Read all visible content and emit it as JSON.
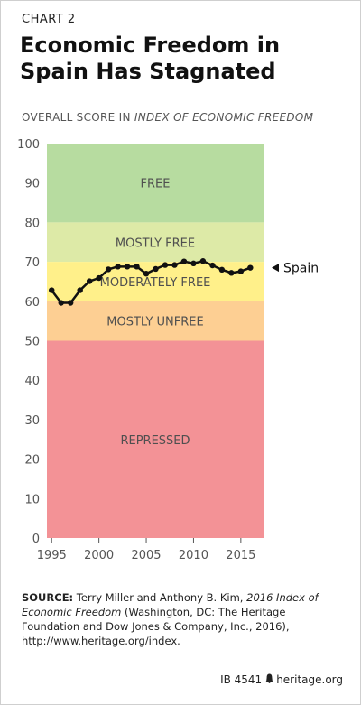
{
  "header": {
    "chart_number": "CHART 2",
    "title": "Economic Freedom in Spain Has Stagnated",
    "subtitle_prefix": "OVERALL SCORE IN ",
    "subtitle_italic": "INDEX OF ECONOMIC FREEDOM"
  },
  "colors": {
    "free": "#b7dca0",
    "mostly_free": "#ddeaa7",
    "moderately_free": "#fff08a",
    "mostly_unfree": "#fdcf93",
    "repressed": "#f39296",
    "band_text": "#4f4f4f",
    "line": "#111111"
  },
  "chart_data": {
    "type": "line",
    "x": [
      1995,
      1996,
      1997,
      1998,
      1999,
      2000,
      2001,
      2002,
      2003,
      2004,
      2005,
      2006,
      2007,
      2008,
      2009,
      2010,
      2011,
      2012,
      2013,
      2014,
      2015,
      2016
    ],
    "series": [
      {
        "name": "Spain",
        "values": [
          62.8,
          59.6,
          59.6,
          62.8,
          65.1,
          65.9,
          68.1,
          68.8,
          68.8,
          68.8,
          67.0,
          68.2,
          69.2,
          69.2,
          70.1,
          69.6,
          70.2,
          69.1,
          68.0,
          67.2,
          67.6,
          68.5
        ]
      }
    ],
    "bands": [
      {
        "label": "FREE",
        "min": 80,
        "max": 100,
        "color_key": "free"
      },
      {
        "label": "MOSTLY FREE",
        "min": 70,
        "max": 80,
        "color_key": "mostly_free"
      },
      {
        "label": "MODERATELY FREE",
        "min": 60,
        "max": 70,
        "color_key": "moderately_free"
      },
      {
        "label": "MOSTLY UNFREE",
        "min": 50,
        "max": 60,
        "color_key": "mostly_unfree"
      },
      {
        "label": "REPRESSED",
        "min": 0,
        "max": 50,
        "color_key": "repressed"
      }
    ],
    "xticks": [
      1995,
      2000,
      2005,
      2010,
      2015
    ],
    "yticks": [
      0,
      10,
      20,
      30,
      40,
      50,
      60,
      70,
      80,
      90,
      100
    ],
    "ylim": [
      0,
      100
    ],
    "xlim": [
      1994.5,
      2017.4
    ],
    "series_label": "Spain"
  },
  "source": {
    "label": "SOURCE:",
    "text_before": " Terry Miller and Anthony B. Kim, ",
    "italic": "2016 Index of Economic Freedom",
    "text_after": " (Washington, DC: The Heritage Foundation and Dow Jones & Company, Inc., 2016), http://www.heritage.org/index."
  },
  "footer": {
    "report_id": "IB 4541",
    "icon": "liberty-bell-icon",
    "site": "heritage.org"
  }
}
